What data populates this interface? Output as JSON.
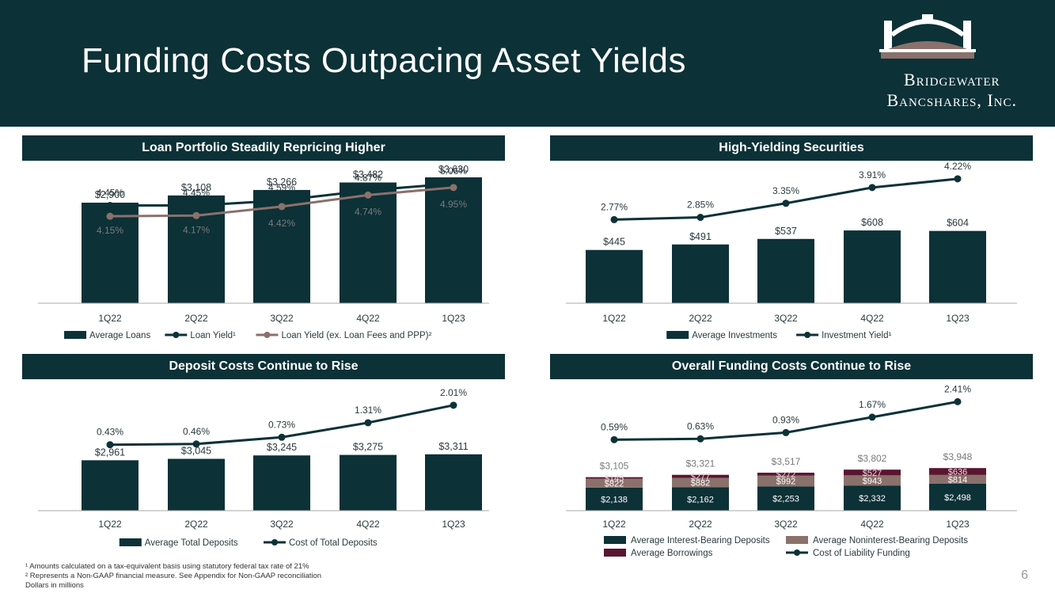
{
  "header": {
    "title": "Funding Costs Outpacing Asset Yields",
    "logo_line1": "Bridgewater",
    "logo_line2": "Bancshares, Inc."
  },
  "colors": {
    "navy": "#0c3137",
    "taupe": "#8a716b",
    "maroon": "#5a1530",
    "white": "#ffffff",
    "axis": "#aaaaaa",
    "label": "#2b3a3d",
    "muted": "#7a7a7a"
  },
  "panels": {
    "loan": {
      "heading": "Loan Portfolio Steadily Repricing Higher"
    },
    "securities": {
      "heading": "High-Yielding Securities"
    },
    "deposit": {
      "heading": "Deposit Costs Continue to Rise"
    },
    "funding": {
      "heading": "Overall Funding Costs Continue to Rise"
    }
  },
  "chart_data": [
    {
      "id": "loan",
      "type": "bar",
      "title": "Loan Portfolio Steadily Repricing Higher",
      "categories": [
        "1Q22",
        "2Q22",
        "3Q22",
        "4Q22",
        "1Q23"
      ],
      "ylim": [
        0,
        9000
      ],
      "bars": {
        "name": "Average Loans",
        "values": [
          2900,
          3108,
          3266,
          3482,
          3630
        ],
        "labels": [
          "$2,900",
          "$3,108",
          "$3,266",
          "$3,482",
          "$3,630"
        ]
      },
      "lines": [
        {
          "name": "Loan Yield¹",
          "values": [
            4.45,
            4.45,
            4.59,
            4.87,
            5.06
          ],
          "labels": [
            "4.45%",
            "4.45%",
            "4.59%",
            "4.87%",
            "5.06%"
          ],
          "color": "#0c3137"
        },
        {
          "name": "Loan Yield (ex. Loan Fees and PPP)²",
          "values": [
            4.15,
            4.17,
            4.42,
            4.74,
            4.95
          ],
          "labels": [
            "4.15%",
            "4.17%",
            "4.42%",
            "4.74%",
            "4.95%"
          ],
          "color": "#8a716b"
        }
      ],
      "legend": [
        "Average Loans",
        "Loan Yield¹",
        "Loan Yield (ex. Loan Fees and PPP)²"
      ]
    },
    {
      "id": "securities",
      "type": "bar",
      "title": "High-Yielding Securities",
      "categories": [
        "1Q22",
        "2Q22",
        "3Q22",
        "4Q22",
        "1Q23"
      ],
      "ylim": [
        0,
        1490
      ],
      "bars": {
        "name": "Average Investments",
        "values": [
          445,
          491,
          537,
          608,
          604
        ],
        "labels": [
          "$445",
          "$491",
          "$537",
          "$608",
          "$604"
        ]
      },
      "lines": [
        {
          "name": "Investment Yield¹",
          "values": [
            2.77,
            2.85,
            3.35,
            3.91,
            4.22
          ],
          "labels": [
            "2.77%",
            "2.85%",
            "3.35%",
            "3.91%",
            "4.22%"
          ],
          "color": "#0c3137"
        }
      ],
      "legend": [
        "Average Investments",
        "Investment Yield¹"
      ]
    },
    {
      "id": "deposit",
      "type": "bar",
      "title": "Deposit Costs Continue to Rise",
      "categories": [
        "1Q22",
        "2Q22",
        "3Q22",
        "4Q22",
        "1Q23"
      ],
      "ylim": [
        0,
        9100
      ],
      "bars": {
        "name": "Average Total Deposits",
        "values": [
          2961,
          3045,
          3245,
          3275,
          3311
        ],
        "labels": [
          "$2,961",
          "$3,045",
          "$3,245",
          "$3,275",
          "$3,311"
        ]
      },
      "lines": [
        {
          "name": "Cost of Total Deposits",
          "values": [
            0.43,
            0.46,
            0.73,
            1.31,
            2.01
          ],
          "labels": [
            "0.43%",
            "0.46%",
            "0.73%",
            "1.31%",
            "2.01%"
          ],
          "color": "#0c3137"
        }
      ],
      "legend": [
        "Average Total Deposits",
        "Cost of Total Deposits"
      ]
    },
    {
      "id": "funding",
      "type": "bar",
      "stacked": true,
      "title": "Overall Funding Costs Continue to Rise",
      "categories": [
        "1Q22",
        "2Q22",
        "3Q22",
        "4Q22",
        "1Q23"
      ],
      "ylim": [
        0,
        11900
      ],
      "series": [
        {
          "name": "Average Interest-Bearing Deposits",
          "values": [
            2138,
            2162,
            2253,
            2332,
            2498
          ],
          "labels": [
            "$2,138",
            "$2,162",
            "$2,253",
            "$2,332",
            "$2,498"
          ],
          "color": "#0c3137"
        },
        {
          "name": "Average Noninterest-Bearing Deposits",
          "values": [
            822,
            882,
            992,
            943,
            814
          ],
          "labels": [
            "$822",
            "$882",
            "$992",
            "$943",
            "$814"
          ],
          "color": "#8a716b"
        },
        {
          "name": "Average Borrowings",
          "values": [
            145,
            277,
            272,
            527,
            636
          ],
          "labels": [
            "$145",
            "$277",
            "$272",
            "$527",
            "$636"
          ],
          "color": "#5a1530"
        }
      ],
      "totals": [
        "$3,105",
        "$3,321",
        "$3,517",
        "$3,802",
        "$3,948"
      ],
      "lines": [
        {
          "name": "Cost of Liability Funding",
          "values": [
            0.59,
            0.63,
            0.93,
            1.67,
            2.41
          ],
          "labels": [
            "0.59%",
            "0.63%",
            "0.93%",
            "1.67%",
            "2.41%"
          ],
          "color": "#0c3137"
        }
      ],
      "legend": [
        "Average Interest-Bearing Deposits",
        "Average Noninterest-Bearing Deposits",
        "Average Borrowings",
        "Cost of Liability Funding"
      ]
    }
  ],
  "footnotes": [
    "¹ Amounts calculated on a tax-equivalent basis using statutory federal tax rate of 21%",
    "² Represents a Non-GAAP financial measure. See Appendix for Non-GAAP reconciliation",
    "Dollars in millions"
  ],
  "page_number": "6"
}
